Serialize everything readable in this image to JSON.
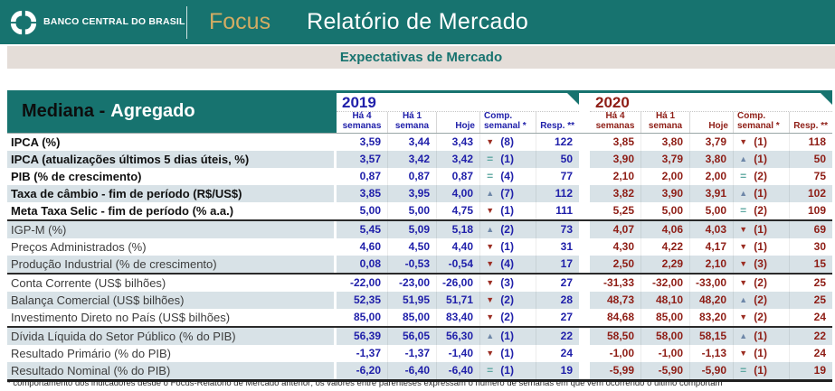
{
  "header": {
    "logo_text": "BANCO CENTRAL DO BRASIL",
    "brand": "Focus",
    "title": "Relatório de Mercado"
  },
  "subtitle": "Expectativas de Mercado",
  "colors": {
    "teal": "#17736F",
    "gold": "#D3AC63",
    "navy_2019": "#2020AA",
    "dark_red_2020": "#8E1D15",
    "alt_row": "#D8E2E7",
    "arrow_up": "#6E87A8",
    "arrow_down": "#9C2D22",
    "arrow_equal": "#5FA8A2"
  },
  "table": {
    "title_black": "Mediana -",
    "title_white": "Agregado",
    "years": [
      {
        "label": "2019",
        "theme": "blue"
      },
      {
        "label": "2020",
        "theme": "red"
      }
    ],
    "columns": [
      {
        "id": "w4",
        "label": "Há 4\nsemanas"
      },
      {
        "id": "w1",
        "label": "Há 1\nsemana"
      },
      {
        "id": "hoje",
        "label": "Hoje"
      },
      {
        "id": "comp",
        "label": "Comp.\nsemanal *"
      },
      {
        "id": "resp",
        "label": "Resp. **"
      }
    ],
    "rows": [
      {
        "label": "IPCA (%)",
        "bold": true,
        "group_start": false,
        "values": [
          {
            "w4": "3,59",
            "w1": "3,44",
            "hoje": "3,43",
            "dir": "down",
            "weeks": "(8)",
            "resp": "122"
          },
          {
            "w4": "3,85",
            "w1": "3,80",
            "hoje": "3,79",
            "dir": "down",
            "weeks": "(1)",
            "resp": "118"
          }
        ]
      },
      {
        "label": "IPCA (atualizações últimos 5 dias úteis, %)",
        "bold": true,
        "group_start": false,
        "values": [
          {
            "w4": "3,57",
            "w1": "3,42",
            "hoje": "3,42",
            "dir": "eq",
            "weeks": "(1)",
            "resp": "50"
          },
          {
            "w4": "3,90",
            "w1": "3,79",
            "hoje": "3,80",
            "dir": "up",
            "weeks": "(1)",
            "resp": "50"
          }
        ]
      },
      {
        "label": "PIB (% de crescimento)",
        "bold": true,
        "group_start": false,
        "values": [
          {
            "w4": "0,87",
            "w1": "0,87",
            "hoje": "0,87",
            "dir": "eq",
            "weeks": "(4)",
            "resp": "77"
          },
          {
            "w4": "2,10",
            "w1": "2,00",
            "hoje": "2,00",
            "dir": "eq",
            "weeks": "(2)",
            "resp": "75"
          }
        ]
      },
      {
        "label": "Taxa de câmbio - fim de período (R$/US$)",
        "bold": true,
        "group_start": false,
        "values": [
          {
            "w4": "3,85",
            "w1": "3,95",
            "hoje": "4,00",
            "dir": "up",
            "weeks": "(7)",
            "resp": "112"
          },
          {
            "w4": "3,82",
            "w1": "3,90",
            "hoje": "3,91",
            "dir": "up",
            "weeks": "(1)",
            "resp": "102"
          }
        ]
      },
      {
        "label": "Meta Taxa Selic - fim de período (% a.a.)",
        "bold": true,
        "group_start": false,
        "values": [
          {
            "w4": "5,00",
            "w1": "5,00",
            "hoje": "4,75",
            "dir": "down",
            "weeks": "(1)",
            "resp": "111"
          },
          {
            "w4": "5,25",
            "w1": "5,00",
            "hoje": "5,00",
            "dir": "eq",
            "weeks": "(2)",
            "resp": "109"
          }
        ]
      },
      {
        "label": "IGP-M (%)",
        "bold": false,
        "group_start": true,
        "values": [
          {
            "w4": "5,45",
            "w1": "5,09",
            "hoje": "5,18",
            "dir": "up",
            "weeks": "(2)",
            "resp": "73"
          },
          {
            "w4": "4,07",
            "w1": "4,06",
            "hoje": "4,03",
            "dir": "down",
            "weeks": "(1)",
            "resp": "69"
          }
        ]
      },
      {
        "label": "Preços Administrados (%)",
        "bold": false,
        "group_start": false,
        "values": [
          {
            "w4": "4,60",
            "w1": "4,50",
            "hoje": "4,40",
            "dir": "down",
            "weeks": "(1)",
            "resp": "31"
          },
          {
            "w4": "4,30",
            "w1": "4,22",
            "hoje": "4,17",
            "dir": "down",
            "weeks": "(1)",
            "resp": "30"
          }
        ]
      },
      {
        "label": "Produção Industrial (% de crescimento)",
        "bold": false,
        "group_start": false,
        "values": [
          {
            "w4": "0,08",
            "w1": "-0,53",
            "hoje": "-0,54",
            "dir": "down",
            "weeks": "(4)",
            "resp": "17"
          },
          {
            "w4": "2,50",
            "w1": "2,29",
            "hoje": "2,10",
            "dir": "down",
            "weeks": "(3)",
            "resp": "15"
          }
        ]
      },
      {
        "label": "Conta Corrente (US$ bilhões)",
        "bold": false,
        "group_start": true,
        "values": [
          {
            "w4": "-22,00",
            "w1": "-23,00",
            "hoje": "-26,00",
            "dir": "down",
            "weeks": "(3)",
            "resp": "27"
          },
          {
            "w4": "-31,33",
            "w1": "-32,00",
            "hoje": "-33,00",
            "dir": "down",
            "weeks": "(2)",
            "resp": "25"
          }
        ]
      },
      {
        "label": "Balança Comercial (US$ bilhões)",
        "bold": false,
        "group_start": false,
        "values": [
          {
            "w4": "52,35",
            "w1": "51,95",
            "hoje": "51,71",
            "dir": "down",
            "weeks": "(2)",
            "resp": "28"
          },
          {
            "w4": "48,73",
            "w1": "48,10",
            "hoje": "48,20",
            "dir": "up",
            "weeks": "(2)",
            "resp": "25"
          }
        ]
      },
      {
        "label": "Investimento Direto no País (US$ bilhões)",
        "bold": false,
        "group_start": false,
        "values": [
          {
            "w4": "85,00",
            "w1": "85,00",
            "hoje": "83,40",
            "dir": "down",
            "weeks": "(2)",
            "resp": "27"
          },
          {
            "w4": "84,68",
            "w1": "85,00",
            "hoje": "83,20",
            "dir": "down",
            "weeks": "(2)",
            "resp": "24"
          }
        ]
      },
      {
        "label": "Dívida Líquida do Setor Público (% do PIB)",
        "bold": false,
        "group_start": true,
        "values": [
          {
            "w4": "56,39",
            "w1": "56,05",
            "hoje": "56,30",
            "dir": "up",
            "weeks": "(1)",
            "resp": "22"
          },
          {
            "w4": "58,50",
            "w1": "58,00",
            "hoje": "58,15",
            "dir": "up",
            "weeks": "(1)",
            "resp": "22"
          }
        ]
      },
      {
        "label": "Resultado Primário (% do PIB)",
        "bold": false,
        "group_start": false,
        "values": [
          {
            "w4": "-1,37",
            "w1": "-1,37",
            "hoje": "-1,40",
            "dir": "down",
            "weeks": "(1)",
            "resp": "24"
          },
          {
            "w4": "-1,00",
            "w1": "-1,00",
            "hoje": "-1,13",
            "dir": "down",
            "weeks": "(1)",
            "resp": "24"
          }
        ]
      },
      {
        "label": "Resultado Nominal (% do PIB)",
        "bold": false,
        "group_start": false,
        "values": [
          {
            "w4": "-6,20",
            "w1": "-6,40",
            "hoje": "-6,40",
            "dir": "eq",
            "weeks": "(1)",
            "resp": "19"
          },
          {
            "w4": "-5,99",
            "w1": "-5,90",
            "hoje": "-5,90",
            "dir": "eq",
            "weeks": "(1)",
            "resp": "19"
          }
        ]
      }
    ]
  },
  "footnote": "* comportamento dos indicadores desde o Focus-Relatório de Mercado anterior; os valores entre parênteses expressam o número de semanas em que vem ocorrendo o último comportam"
}
